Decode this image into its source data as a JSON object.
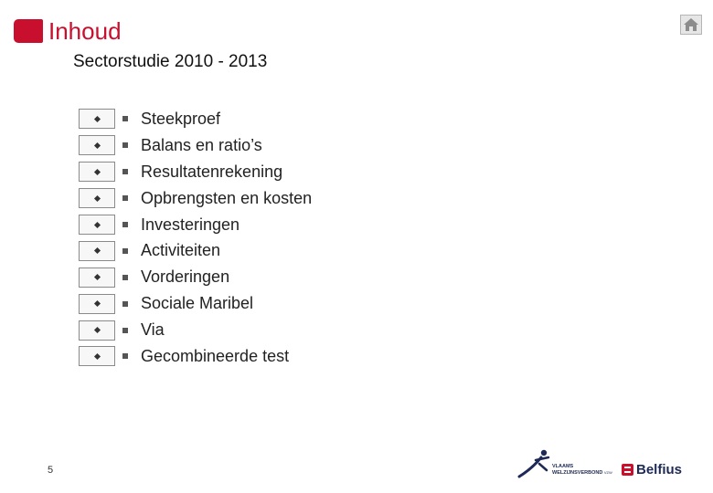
{
  "header": {
    "title": "Inhoud",
    "subtitle": "Sectorstudie 2010 - 2013",
    "accent_color": "#c8102e"
  },
  "home_icon": "home-icon",
  "toc": {
    "items": [
      {
        "label": "Steekproef"
      },
      {
        "label": "Balans en ratio’s"
      },
      {
        "label": "Resultatenrekening"
      },
      {
        "label": "Opbrengsten en kosten"
      },
      {
        "label": "Investeringen"
      },
      {
        "label": "Activiteiten"
      },
      {
        "label": "Vorderingen"
      },
      {
        "label": "Sociale Maribel"
      },
      {
        "label": "Via"
      },
      {
        "label": "Gecombineerde test"
      }
    ]
  },
  "footer": {
    "page_number": "5",
    "vvsg_line1": "VLAAMS",
    "vvsg_line2": "WELZIJNSVERBOND",
    "vvsg_suffix": "VZW",
    "belfius_name": "Belfius"
  }
}
